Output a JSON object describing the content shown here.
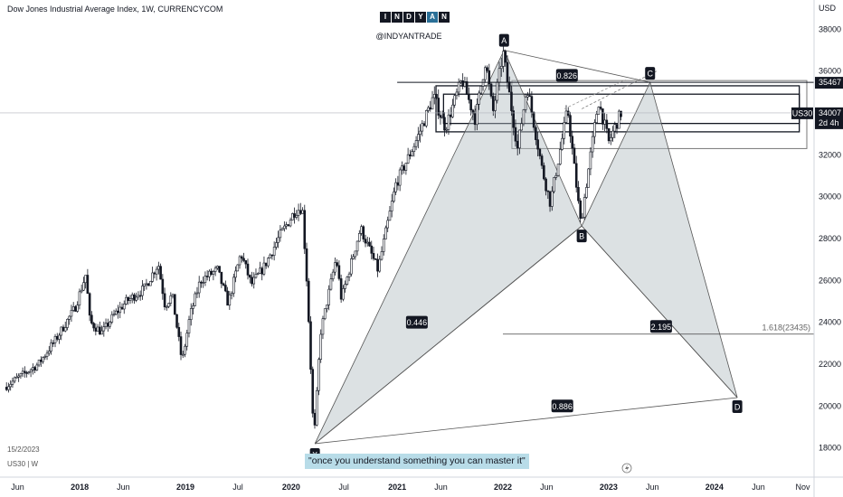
{
  "header": {
    "title": "Dow Jones Industrial Average Index, 1W, CURRENCYCOM",
    "logo_letters": [
      "I",
      "N",
      "D",
      "Y",
      "A",
      "N"
    ],
    "handle": "@INDYANTRADE"
  },
  "footer": {
    "date": "15/2/2023",
    "symbol": "US30 | W",
    "quote": "\"once you understand something you can master it\""
  },
  "colors": {
    "candle": "#131722",
    "pattern_fill": "#b2bcc2",
    "pattern_stroke": "#555555",
    "label_bg": "#131722",
    "quote_bg": "#b8dce8"
  },
  "chart_data": {
    "type": "candlestick",
    "timeframe": "1W",
    "axis_unit": "USD",
    "ylim": [
      16600,
      39400
    ],
    "xlim": [
      "2017-04-01",
      "2024-12-10"
    ],
    "y_ticks": [
      18000,
      20000,
      22000,
      24000,
      26000,
      28000,
      30000,
      32000,
      34000,
      36000,
      38000
    ],
    "x_ticks": [
      {
        "label": "Jun",
        "date": "2017-06-01"
      },
      {
        "label": "2018",
        "date": "2018-01-01"
      },
      {
        "label": "Jun",
        "date": "2018-06-01"
      },
      {
        "label": "2019",
        "date": "2019-01-01"
      },
      {
        "label": "Jul",
        "date": "2019-07-01"
      },
      {
        "label": "2020",
        "date": "2020-01-01"
      },
      {
        "label": "Jul",
        "date": "2020-07-01"
      },
      {
        "label": "2021",
        "date": "2021-01-01"
      },
      {
        "label": "Jun",
        "date": "2021-06-01"
      },
      {
        "label": "2022",
        "date": "2022-01-01"
      },
      {
        "label": "Jun",
        "date": "2022-06-01"
      },
      {
        "label": "2023",
        "date": "2023-01-01"
      },
      {
        "label": "Jun",
        "date": "2023-06-01"
      },
      {
        "label": "2024",
        "date": "2024-01-01"
      },
      {
        "label": "Jun",
        "date": "2024-06-01"
      },
      {
        "label": "Nov",
        "date": "2024-11-01"
      }
    ],
    "price_path": [
      [
        "2017-04-20",
        20900
      ],
      [
        "2017-06-01",
        21300
      ],
      [
        "2017-08-15",
        22000
      ],
      [
        "2017-10-15",
        23200
      ],
      [
        "2017-12-20",
        24700
      ],
      [
        "2018-01-26",
        26300
      ],
      [
        "2018-02-09",
        24000
      ],
      [
        "2018-03-23",
        23500
      ],
      [
        "2018-05-01",
        24300
      ],
      [
        "2018-06-15",
        25000
      ],
      [
        "2018-08-15",
        25600
      ],
      [
        "2018-10-03",
        26800
      ],
      [
        "2018-10-26",
        24800
      ],
      [
        "2018-11-20",
        25300
      ],
      [
        "2018-12-24",
        22100
      ],
      [
        "2019-01-20",
        24300
      ],
      [
        "2019-02-25",
        26000
      ],
      [
        "2019-04-25",
        26500
      ],
      [
        "2019-06-01",
        24900
      ],
      [
        "2019-07-15",
        27300
      ],
      [
        "2019-08-20",
        25800
      ],
      [
        "2019-10-01",
        26600
      ],
      [
        "2019-11-25",
        28100
      ],
      [
        "2020-01-17",
        29300
      ],
      [
        "2020-02-12",
        29500
      ],
      [
        "2020-03-01",
        25400
      ],
      [
        "2020-03-23",
        18300
      ],
      [
        "2020-04-15",
        23500
      ],
      [
        "2020-06-08",
        27100
      ],
      [
        "2020-06-26",
        25100
      ],
      [
        "2020-08-31",
        28500
      ],
      [
        "2020-10-30",
        26500
      ],
      [
        "2020-12-31",
        30600
      ],
      [
        "2021-03-15",
        32800
      ],
      [
        "2021-05-10",
        34800
      ],
      [
        "2021-06-20",
        33300
      ],
      [
        "2021-08-16",
        35600
      ],
      [
        "2021-10-01",
        33700
      ],
      [
        "2021-11-05",
        36500
      ],
      [
        "2021-12-01",
        34000
      ],
      [
        "2022-01-05",
        36900
      ],
      [
        "2022-02-24",
        32300
      ],
      [
        "2022-03-29",
        35300
      ],
      [
        "2022-05-20",
        31300
      ],
      [
        "2022-06-17",
        29700
      ],
      [
        "2022-08-16",
        34200
      ],
      [
        "2022-09-30",
        28700
      ],
      [
        "2022-11-30",
        34600
      ],
      [
        "2023-01-05",
        32600
      ],
      [
        "2023-02-15",
        34000
      ]
    ],
    "current_price": {
      "symbol": "US30",
      "value": 34007,
      "countdown": "2d 4h"
    },
    "harmonic_pattern": {
      "points": [
        {
          "label": "X",
          "date": "2020-03-23",
          "value": 18200
        },
        {
          "label": "A",
          "date": "2022-01-05",
          "value": 37000
        },
        {
          "label": "B",
          "date": "2022-09-30",
          "value": 28600
        },
        {
          "label": "C",
          "date": "2023-05-24",
          "value": 35467
        },
        {
          "label": "D",
          "date": "2024-03-20",
          "value": 20400
        }
      ],
      "ratios": [
        {
          "label": "0.446",
          "date": "2021-03-10",
          "value": 24000
        },
        {
          "label": "0.826",
          "date": "2022-08-10",
          "value": 35800
        },
        {
          "label": "2.195",
          "date": "2023-07-01",
          "value": 23800
        },
        {
          "label": "0.886",
          "date": "2022-07-25",
          "value": 20000
        }
      ]
    },
    "level_lines": [
      {
        "label": "35467",
        "value": 35467,
        "from": "2021-01-01"
      },
      {
        "label": "1.618(23435)",
        "value": 23435,
        "from": "2022-01-01"
      }
    ],
    "zones": [
      {
        "from": "2021-05-15",
        "to": "2024-10-20",
        "top": 35300,
        "bottom": 33100
      },
      {
        "from": "2021-06-10",
        "to": "2024-10-20",
        "top": 34900,
        "bottom": 33500
      },
      {
        "from": "2022-02-01",
        "to": "2024-11-15",
        "top": 35550,
        "bottom": 32300
      }
    ]
  }
}
